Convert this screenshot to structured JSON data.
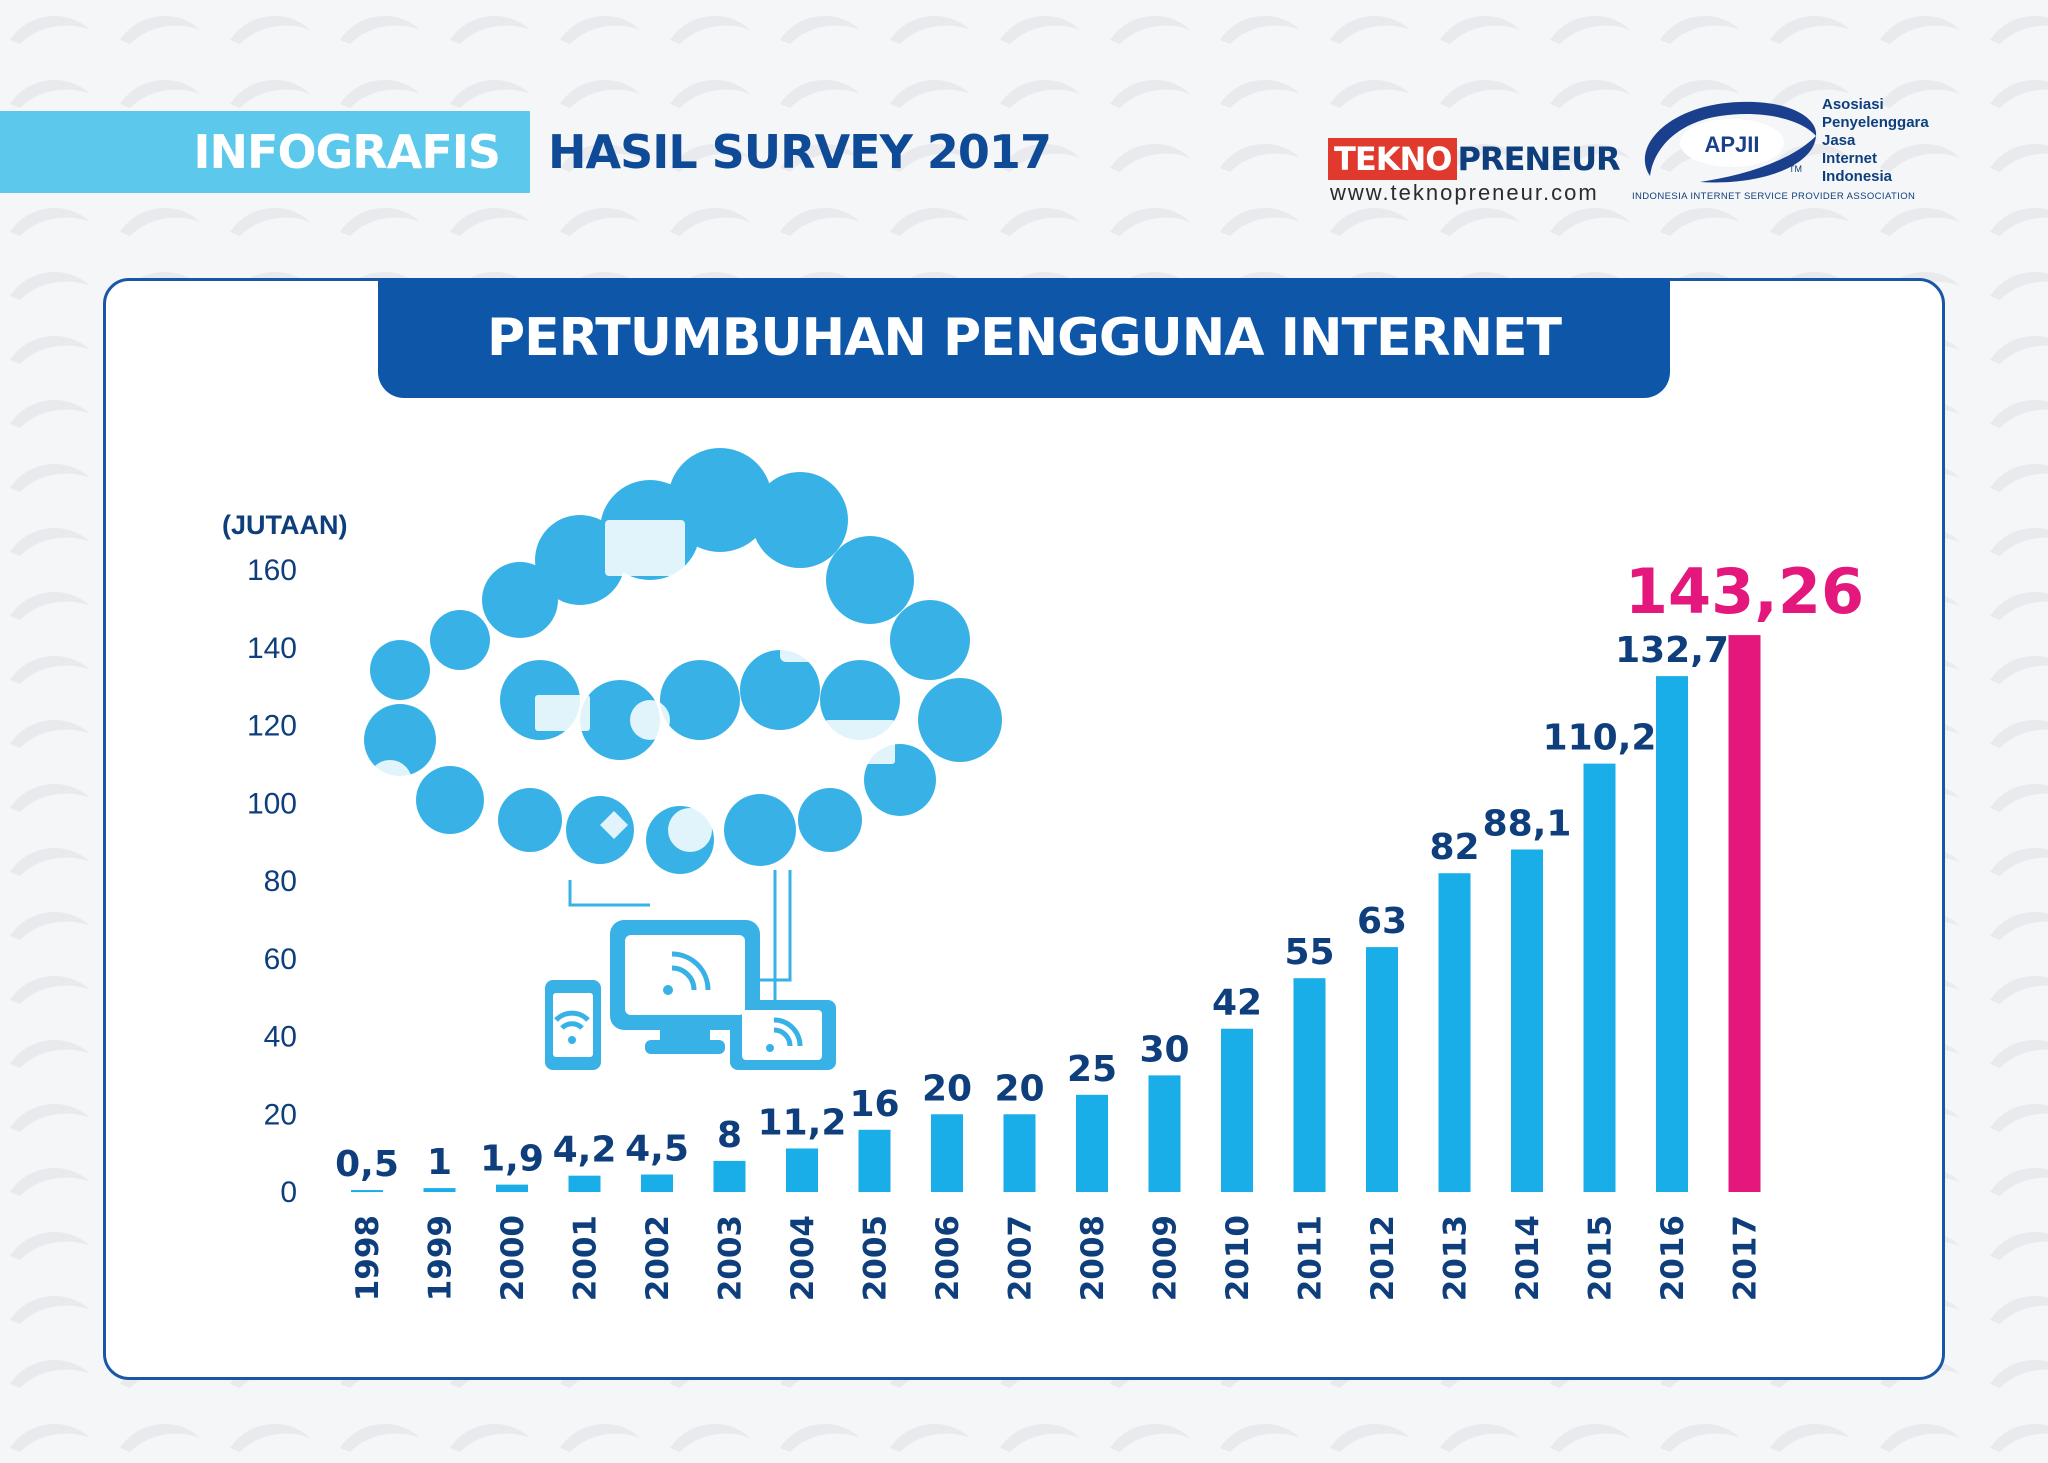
{
  "header": {
    "tag": "INFOGRAFIS",
    "title": "HASIL SURVEY 2017"
  },
  "logos": {
    "tekno_red": "TEKNO",
    "tekno_blue": "PRENEUR",
    "tekno_url": "www.teknopreneur.com",
    "apjii_badge": "APJII",
    "apjii_tm": "TM",
    "apjii_lines": [
      "Asosiasi",
      "Penyelenggara",
      "Jasa",
      "Internet",
      "Indonesia"
    ],
    "apjii_sub": "INDONESIA INTERNET SERVICE PROVIDER ASSOCIATION"
  },
  "colors": {
    "bar": "#1aaee8",
    "highlight": "#e4177d",
    "navy": "#0e3f7c",
    "title_bg": "#0e56a8",
    "banner": "#5bc8ec"
  },
  "illustration": {
    "icon": "cloud-devices-icon"
  },
  "chart_data": {
    "type": "bar",
    "title": "PERTUMBUHAN PENGGUNA INTERNET",
    "ylabel": "(JUTAAN)",
    "xlabel": "",
    "ylim": [
      0,
      160
    ],
    "yticks": [
      0,
      20,
      40,
      60,
      80,
      100,
      120,
      140,
      160
    ],
    "grid": false,
    "categories": [
      "1998",
      "1999",
      "2000",
      "2001",
      "2002",
      "2003",
      "2004",
      "2005",
      "2006",
      "2007",
      "2008",
      "2009",
      "2010",
      "2011",
      "2012",
      "2013",
      "2014",
      "2015",
      "2016",
      "2017"
    ],
    "values": [
      0.5,
      1,
      1.9,
      4.2,
      4.5,
      8,
      11.2,
      16,
      20,
      20,
      25,
      30,
      42,
      55,
      63,
      82,
      88.1,
      110.2,
      132.7,
      143.26
    ],
    "value_labels": [
      "0,5",
      "1",
      "1,9",
      "4,2",
      "4,5",
      "8",
      "11,2",
      "16",
      "20",
      "20",
      "25",
      "30",
      "42",
      "55",
      "63",
      "82",
      "88,1",
      "110,2",
      "132,7",
      "143,26"
    ],
    "highlight_index": 19
  }
}
